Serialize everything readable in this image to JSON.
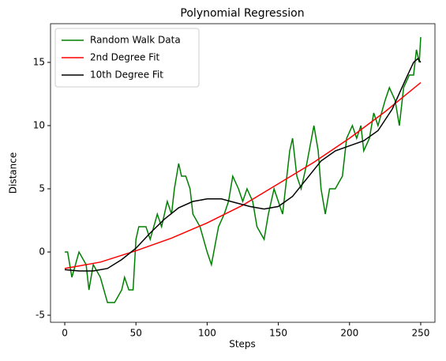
{
  "chart_data": {
    "type": "line",
    "title": "Polynomial Regression",
    "x_label": "Steps",
    "y_label": "Distance",
    "xlim": [
      -10,
      260
    ],
    "ylim": [
      -5.56,
      18.06
    ],
    "xticks": [
      0,
      50,
      100,
      150,
      200,
      250
    ],
    "yticks": [
      -5,
      0,
      5,
      10,
      15
    ],
    "legend": "upper left",
    "grid": false,
    "series": [
      {
        "name": "Random Walk Data",
        "color": "#008000",
        "x": [
          0,
          2,
          5,
          10,
          15,
          17,
          20,
          25,
          30,
          35,
          40,
          42,
          45,
          48,
          50,
          52,
          57,
          60,
          65,
          68,
          72,
          75,
          77,
          80,
          82,
          85,
          88,
          90,
          95,
          100,
          103,
          108,
          112,
          115,
          118,
          122,
          125,
          128,
          132,
          135,
          140,
          143,
          147,
          150,
          153,
          155,
          158,
          160,
          163,
          166,
          170,
          175,
          178,
          180,
          183,
          186,
          190,
          195,
          198,
          202,
          205,
          208,
          210,
          214,
          217,
          220,
          225,
          228,
          232,
          235,
          238,
          242,
          245,
          247,
          249,
          250
        ],
        "values": [
          0,
          0,
          -2,
          0,
          -1,
          -3,
          -1,
          -2,
          -4,
          -4,
          -3,
          -2,
          -3,
          -3,
          1,
          2,
          2,
          1,
          3,
          2,
          4,
          3,
          5,
          7,
          6,
          6,
          5,
          3,
          2,
          0,
          -1,
          2,
          3,
          4,
          6,
          5,
          4,
          5,
          4,
          2,
          1,
          3,
          5,
          4,
          3,
          5,
          8,
          9,
          6,
          5,
          7,
          10,
          8,
          5,
          3,
          5,
          5,
          6,
          9,
          10,
          9,
          10,
          8,
          9,
          11,
          10,
          12,
          13,
          12,
          10,
          13,
          14,
          14,
          16,
          15,
          17
        ]
      },
      {
        "name": "2nd Degree Fit",
        "color": "#ff0000",
        "x": [
          0,
          25,
          50,
          75,
          100,
          125,
          150,
          175,
          200,
          225,
          250
        ],
        "values": [
          -1.3,
          -0.8,
          0.1,
          1.1,
          2.3,
          3.7,
          5.4,
          7.1,
          9.0,
          11.1,
          13.4
        ]
      },
      {
        "name": "10th Degree Fit",
        "color": "#000000",
        "x": [
          0,
          10,
          20,
          30,
          40,
          50,
          60,
          70,
          80,
          90,
          100,
          110,
          120,
          130,
          140,
          150,
          160,
          170,
          180,
          190,
          200,
          210,
          220,
          230,
          240,
          245,
          248,
          250
        ],
        "values": [
          -1.4,
          -1.5,
          -1.5,
          -1.3,
          -0.6,
          0.3,
          1.5,
          2.6,
          3.5,
          4.0,
          4.2,
          4.2,
          3.9,
          3.6,
          3.4,
          3.6,
          4.4,
          5.8,
          7.2,
          8.0,
          8.4,
          8.8,
          9.6,
          11.3,
          13.8,
          15.0,
          15.3,
          15.0
        ]
      }
    ]
  }
}
